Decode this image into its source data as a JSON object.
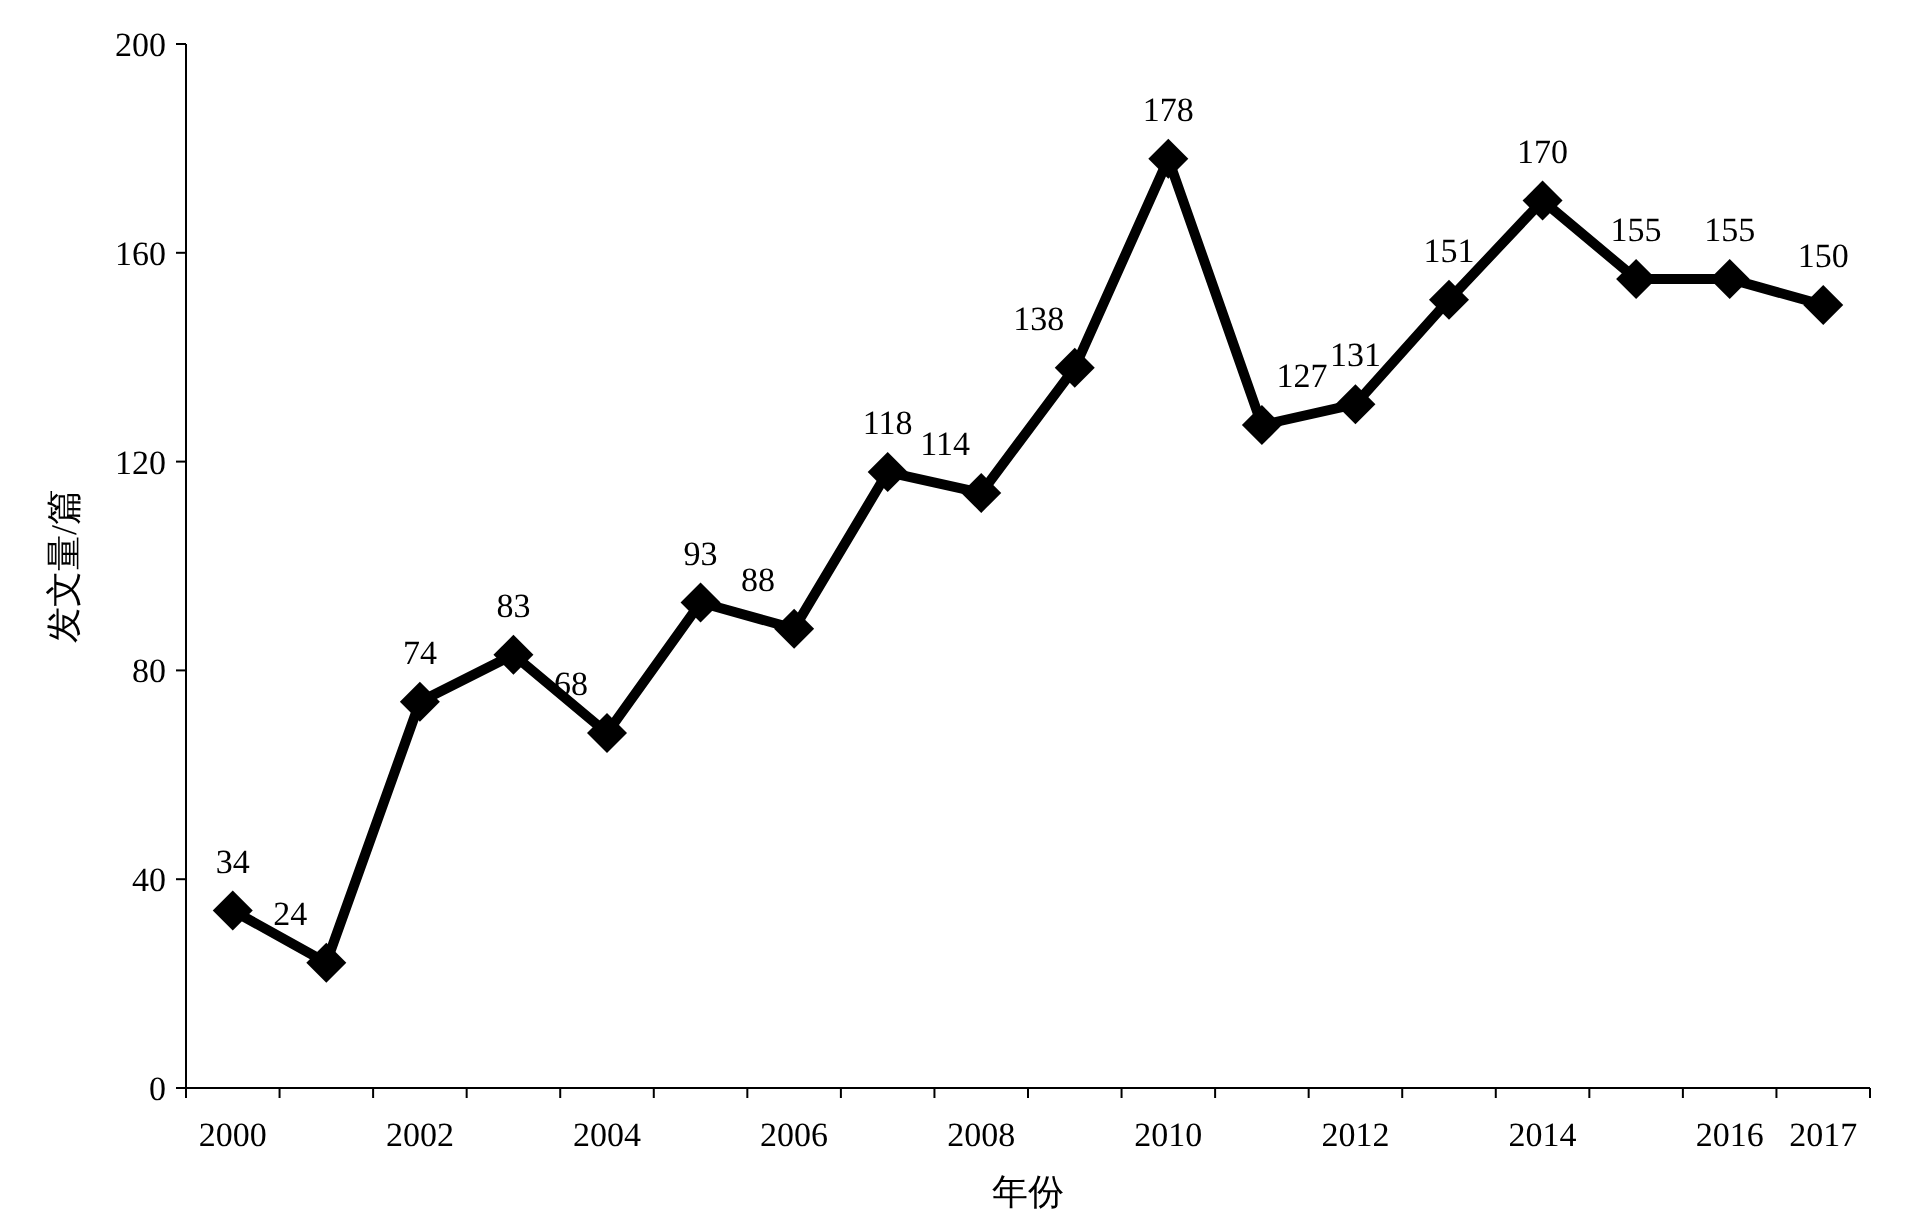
{
  "chart_data": {
    "type": "line",
    "xlabel": "年份",
    "ylabel": "发文量/篇",
    "categories": [
      "2000",
      null,
      "2002",
      null,
      "2004",
      null,
      "2006",
      null,
      "2008",
      null,
      "2010",
      null,
      "2012",
      null,
      "2014",
      null,
      "2016",
      "2017"
    ],
    "series": [
      {
        "color": "#000000",
        "values": [
          34,
          24,
          74,
          83,
          68,
          93,
          88,
          118,
          114,
          138,
          178,
          127,
          131,
          151,
          170,
          155,
          155,
          150
        ]
      }
    ],
    "ylim": [
      0,
      200
    ],
    "yticks": [
      0,
      40,
      80,
      120,
      160,
      200
    ],
    "data_labels": true,
    "marker": "diamond",
    "line_style": "solid",
    "grid": false
  }
}
